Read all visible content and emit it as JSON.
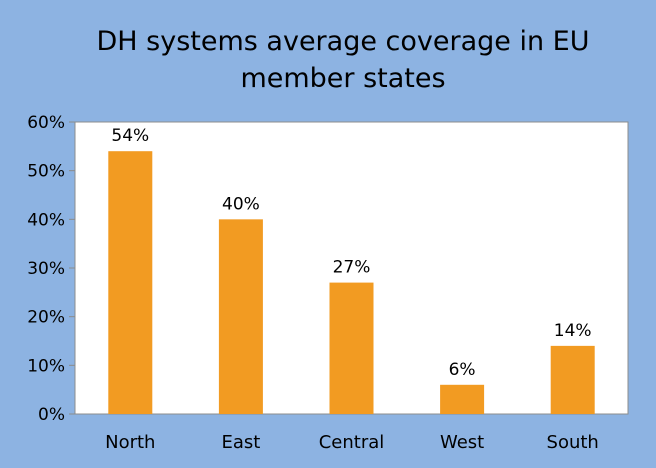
{
  "colors": {
    "background": "#8db3e2",
    "plot_area": "#ffffff",
    "bar": "#f29b22",
    "gridline": "#8c8c8c"
  },
  "chart_data": {
    "type": "bar",
    "title_lines": [
      "DH systems average coverage in EU",
      "member states"
    ],
    "categories": [
      "North",
      "East",
      "Central",
      "West",
      "South"
    ],
    "values": [
      54,
      40,
      27,
      6,
      14
    ],
    "data_labels": [
      "54%",
      "40%",
      "27%",
      "6%",
      "14%"
    ],
    "ylim": [
      0,
      60
    ],
    "yticks": [
      0,
      10,
      20,
      30,
      40,
      50,
      60
    ],
    "ytick_labels": [
      "0%",
      "10%",
      "20%",
      "30%",
      "40%",
      "50%",
      "60%"
    ],
    "xlabel": "",
    "ylabel": "",
    "grid": false,
    "legend": "none"
  }
}
